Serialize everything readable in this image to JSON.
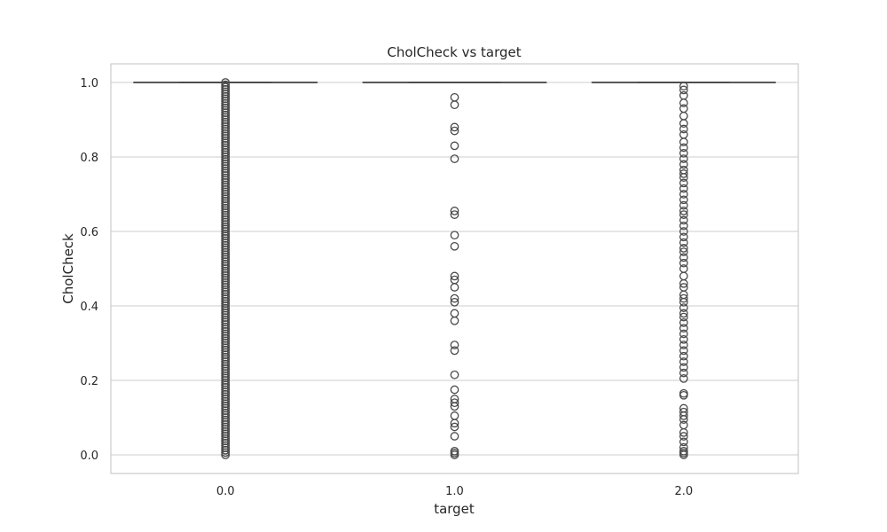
{
  "chart_data": {
    "type": "box",
    "title": "CholCheck vs target",
    "xlabel": "target",
    "ylabel": "CholCheck",
    "ylim": [
      -0.05,
      1.05
    ],
    "y_ticks": [
      0.0,
      0.2,
      0.4,
      0.6,
      0.8,
      1.0
    ],
    "y_tick_labels": [
      "0.0",
      "0.2",
      "0.4",
      "0.6",
      "0.8",
      "1.0"
    ],
    "categories": [
      "0.0",
      "1.0",
      "2.0"
    ],
    "grid": true,
    "colors": {
      "box_line": "#4a4a4a",
      "grid": "#cccccc",
      "frame": "#cccccc",
      "text": "#262626"
    },
    "series": [
      {
        "category": "0.0",
        "median": 1.0,
        "q1": 1.0,
        "q3": 1.0,
        "whisker_low": 1.0,
        "whisker_high": 1.0,
        "outliers_continuous_range": [
          0.0,
          1.0
        ],
        "outliers": []
      },
      {
        "category": "1.0",
        "median": 1.0,
        "q1": 1.0,
        "q3": 1.0,
        "whisker_low": 1.0,
        "whisker_high": 1.0,
        "outliers": [
          0.96,
          0.94,
          0.88,
          0.87,
          0.83,
          0.795,
          0.655,
          0.645,
          0.59,
          0.56,
          0.48,
          0.47,
          0.45,
          0.42,
          0.41,
          0.38,
          0.36,
          0.295,
          0.28,
          0.215,
          0.175,
          0.15,
          0.14,
          0.13,
          0.105,
          0.085,
          0.075,
          0.05,
          0.01,
          0.005,
          0.0
        ]
      },
      {
        "category": "2.0",
        "median": 1.0,
        "q1": 1.0,
        "q3": 1.0,
        "whisker_low": 1.0,
        "whisker_high": 1.0,
        "outliers": [
          0.99,
          0.98,
          0.965,
          0.945,
          0.93,
          0.91,
          0.89,
          0.875,
          0.86,
          0.84,
          0.825,
          0.81,
          0.795,
          0.78,
          0.765,
          0.755,
          0.745,
          0.73,
          0.715,
          0.7,
          0.685,
          0.67,
          0.655,
          0.645,
          0.63,
          0.615,
          0.6,
          0.585,
          0.57,
          0.555,
          0.545,
          0.53,
          0.515,
          0.5,
          0.48,
          0.46,
          0.45,
          0.43,
          0.42,
          0.41,
          0.395,
          0.38,
          0.37,
          0.355,
          0.34,
          0.325,
          0.31,
          0.295,
          0.28,
          0.265,
          0.25,
          0.235,
          0.22,
          0.205,
          0.165,
          0.16,
          0.125,
          0.115,
          0.105,
          0.095,
          0.08,
          0.06,
          0.05,
          0.035,
          0.02,
          0.01,
          0.005,
          0.0
        ]
      }
    ]
  }
}
